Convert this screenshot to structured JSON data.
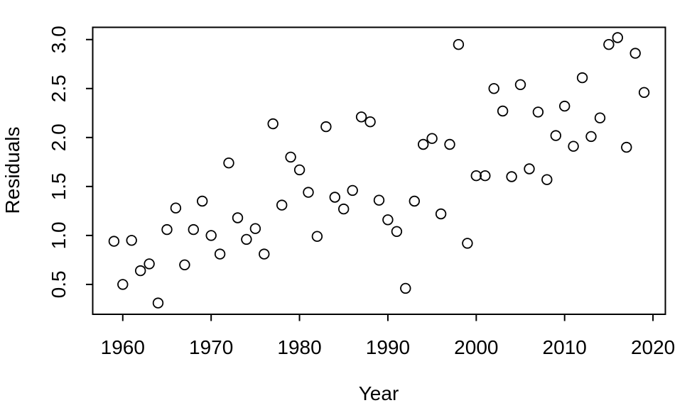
{
  "chart_data": {
    "type": "scatter",
    "title": "",
    "xlabel": "Year",
    "ylabel": "Residuals",
    "grid": false,
    "legend": false,
    "background_color": "#ffffff",
    "marker": "open-circle",
    "marker_color": "#000000",
    "xlim": [
      1956.6,
      2021.4
    ],
    "ylim": [
      0.195,
      3.125
    ],
    "x_ticks": [
      {
        "value": 1960,
        "label": "1960"
      },
      {
        "value": 1970,
        "label": "1970"
      },
      {
        "value": 1980,
        "label": "1980"
      },
      {
        "value": 1990,
        "label": "1990"
      },
      {
        "value": 2000,
        "label": "2000"
      },
      {
        "value": 2010,
        "label": "2010"
      },
      {
        "value": 2020,
        "label": "2020"
      }
    ],
    "y_ticks": [
      {
        "value": 0.5,
        "label": "0.5"
      },
      {
        "value": 1.0,
        "label": "1.0"
      },
      {
        "value": 1.5,
        "label": "1.5"
      },
      {
        "value": 2.0,
        "label": "2.0"
      },
      {
        "value": 2.5,
        "label": "2.5"
      },
      {
        "value": 3.0,
        "label": "3.0"
      }
    ],
    "series": [
      {
        "name": "residuals",
        "x": [
          1959,
          1960,
          1961,
          1962,
          1963,
          1964,
          1965,
          1966,
          1967,
          1968,
          1969,
          1970,
          1971,
          1972,
          1973,
          1974,
          1975,
          1976,
          1977,
          1978,
          1979,
          1980,
          1981,
          1982,
          1983,
          1984,
          1985,
          1986,
          1987,
          1988,
          1989,
          1990,
          1991,
          1992,
          1993,
          1994,
          1995,
          1996,
          1997,
          1998,
          1999,
          2000,
          2001,
          2002,
          2003,
          2004,
          2005,
          2006,
          2007,
          2008,
          2009,
          2010,
          2011,
          2012,
          2013,
          2014,
          2015,
          2016,
          2017,
          2018,
          2019
        ],
        "y": [
          0.94,
          0.5,
          0.95,
          0.64,
          0.71,
          0.31,
          1.06,
          1.28,
          0.7,
          1.06,
          1.35,
          1.0,
          0.81,
          1.74,
          1.18,
          0.96,
          1.07,
          0.81,
          2.14,
          1.31,
          1.8,
          1.67,
          1.44,
          0.99,
          2.11,
          1.39,
          1.27,
          1.46,
          2.21,
          2.16,
          1.36,
          1.16,
          1.04,
          0.46,
          1.35,
          1.93,
          1.99,
          1.22,
          1.93,
          2.95,
          0.92,
          1.61,
          1.61,
          2.5,
          2.27,
          1.6,
          2.54,
          1.68,
          2.26,
          1.57,
          2.02,
          2.32,
          1.91,
          2.61,
          2.01,
          2.2,
          2.95,
          3.02,
          1.9,
          2.86,
          2.46
        ]
      }
    ]
  }
}
